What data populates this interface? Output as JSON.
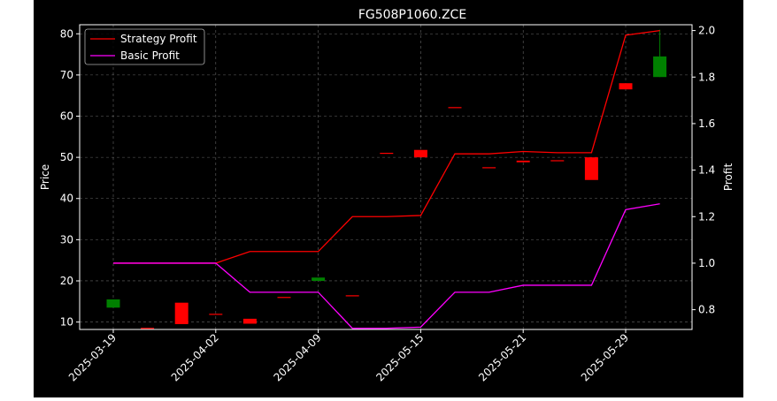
{
  "chart_data": {
    "type": "candlestick+line",
    "title": "FG508P1060.ZCE",
    "xlabel": "",
    "ylabel": "Price",
    "y2label": "Profit",
    "ylim": [
      8.2,
      82.2
    ],
    "y2lim": [
      0.715,
      2.025
    ],
    "yticks": [
      10,
      20,
      30,
      40,
      50,
      60,
      70,
      80
    ],
    "y2ticks": [
      0.8,
      1.0,
      1.2,
      1.4,
      1.6,
      1.8,
      2.0
    ],
    "y2tick_labels": [
      "0.8",
      "1.0",
      "1.2",
      "1.4",
      "1.6",
      "1.8",
      "2.0"
    ],
    "xticks": [
      {
        "i": 0,
        "label": "2025-03-19"
      },
      {
        "i": 3,
        "label": "2025-04-02"
      },
      {
        "i": 6,
        "label": "2025-04-09"
      },
      {
        "i": 9,
        "label": "2025-05-15"
      },
      {
        "i": 12,
        "label": "2025-05-21"
      },
      {
        "i": 15,
        "label": "2025-05-29"
      }
    ],
    "grid": true,
    "legend_position": "top-left",
    "colors": {
      "up": "#008000",
      "down": "#ff0000",
      "strategy": "#ff0000",
      "basic": "#ff00ff",
      "background": "#000000",
      "axes": "#ffffff"
    },
    "candles": [
      {
        "i": 0,
        "open": 13.5,
        "close": 15.5,
        "high": 15.5,
        "low": 13.5
      },
      {
        "i": 1,
        "open": 8.6,
        "close": 8.4,
        "high": 8.6,
        "low": 8.4
      },
      {
        "i": 2,
        "open": 14.7,
        "close": 9.5,
        "high": 14.7,
        "low": 9.5
      },
      {
        "i": 3,
        "open": 12.0,
        "close": 11.8,
        "high": 12.0,
        "low": 11.8
      },
      {
        "i": 4,
        "open": 10.8,
        "close": 9.6,
        "high": 10.8,
        "low": 9.6
      },
      {
        "i": 5,
        "open": 16.1,
        "close": 15.9,
        "high": 16.1,
        "low": 15.9
      },
      {
        "i": 6,
        "open": 20.0,
        "close": 20.8,
        "high": 20.8,
        "low": 20.0
      },
      {
        "i": 7,
        "open": 16.5,
        "close": 16.3,
        "high": 16.5,
        "low": 16.3
      },
      {
        "i": 8,
        "open": 51.1,
        "close": 50.9,
        "high": 51.1,
        "low": 50.9
      },
      {
        "i": 9,
        "open": 51.8,
        "close": 50.0,
        "high": 51.8,
        "low": 50.0
      },
      {
        "i": 10,
        "open": 62.2,
        "close": 62.0,
        "high": 62.2,
        "low": 62.0
      },
      {
        "i": 11,
        "open": 47.6,
        "close": 47.4,
        "high": 47.6,
        "low": 47.4
      },
      {
        "i": 12,
        "open": 49.2,
        "close": 48.8,
        "high": 49.2,
        "low": 48.8
      },
      {
        "i": 13,
        "open": 49.3,
        "close": 49.1,
        "high": 49.3,
        "low": 49.1
      },
      {
        "i": 14,
        "open": 50.0,
        "close": 44.5,
        "high": 50.0,
        "low": 44.5
      },
      {
        "i": 15,
        "open": 68.0,
        "close": 66.5,
        "high": 68.0,
        "low": 66.5
      },
      {
        "i": 16,
        "open": 69.5,
        "close": 74.5,
        "high": 81.0,
        "low": 69.5
      }
    ],
    "series": [
      {
        "name": "Strategy Profit",
        "axis": "right",
        "values": [
          1.0,
          1.0,
          1.0,
          1.0,
          1.05,
          1.05,
          1.05,
          1.2,
          1.2,
          1.205,
          1.47,
          1.47,
          1.48,
          1.475,
          1.475,
          1.98,
          2.0
        ]
      },
      {
        "name": "Basic Profit",
        "axis": "right",
        "values": [
          1.0,
          1.0,
          1.0,
          1.0,
          0.875,
          0.875,
          0.875,
          0.72,
          0.72,
          0.725,
          0.875,
          0.875,
          0.905,
          0.905,
          0.905,
          1.23,
          1.255
        ]
      }
    ]
  }
}
